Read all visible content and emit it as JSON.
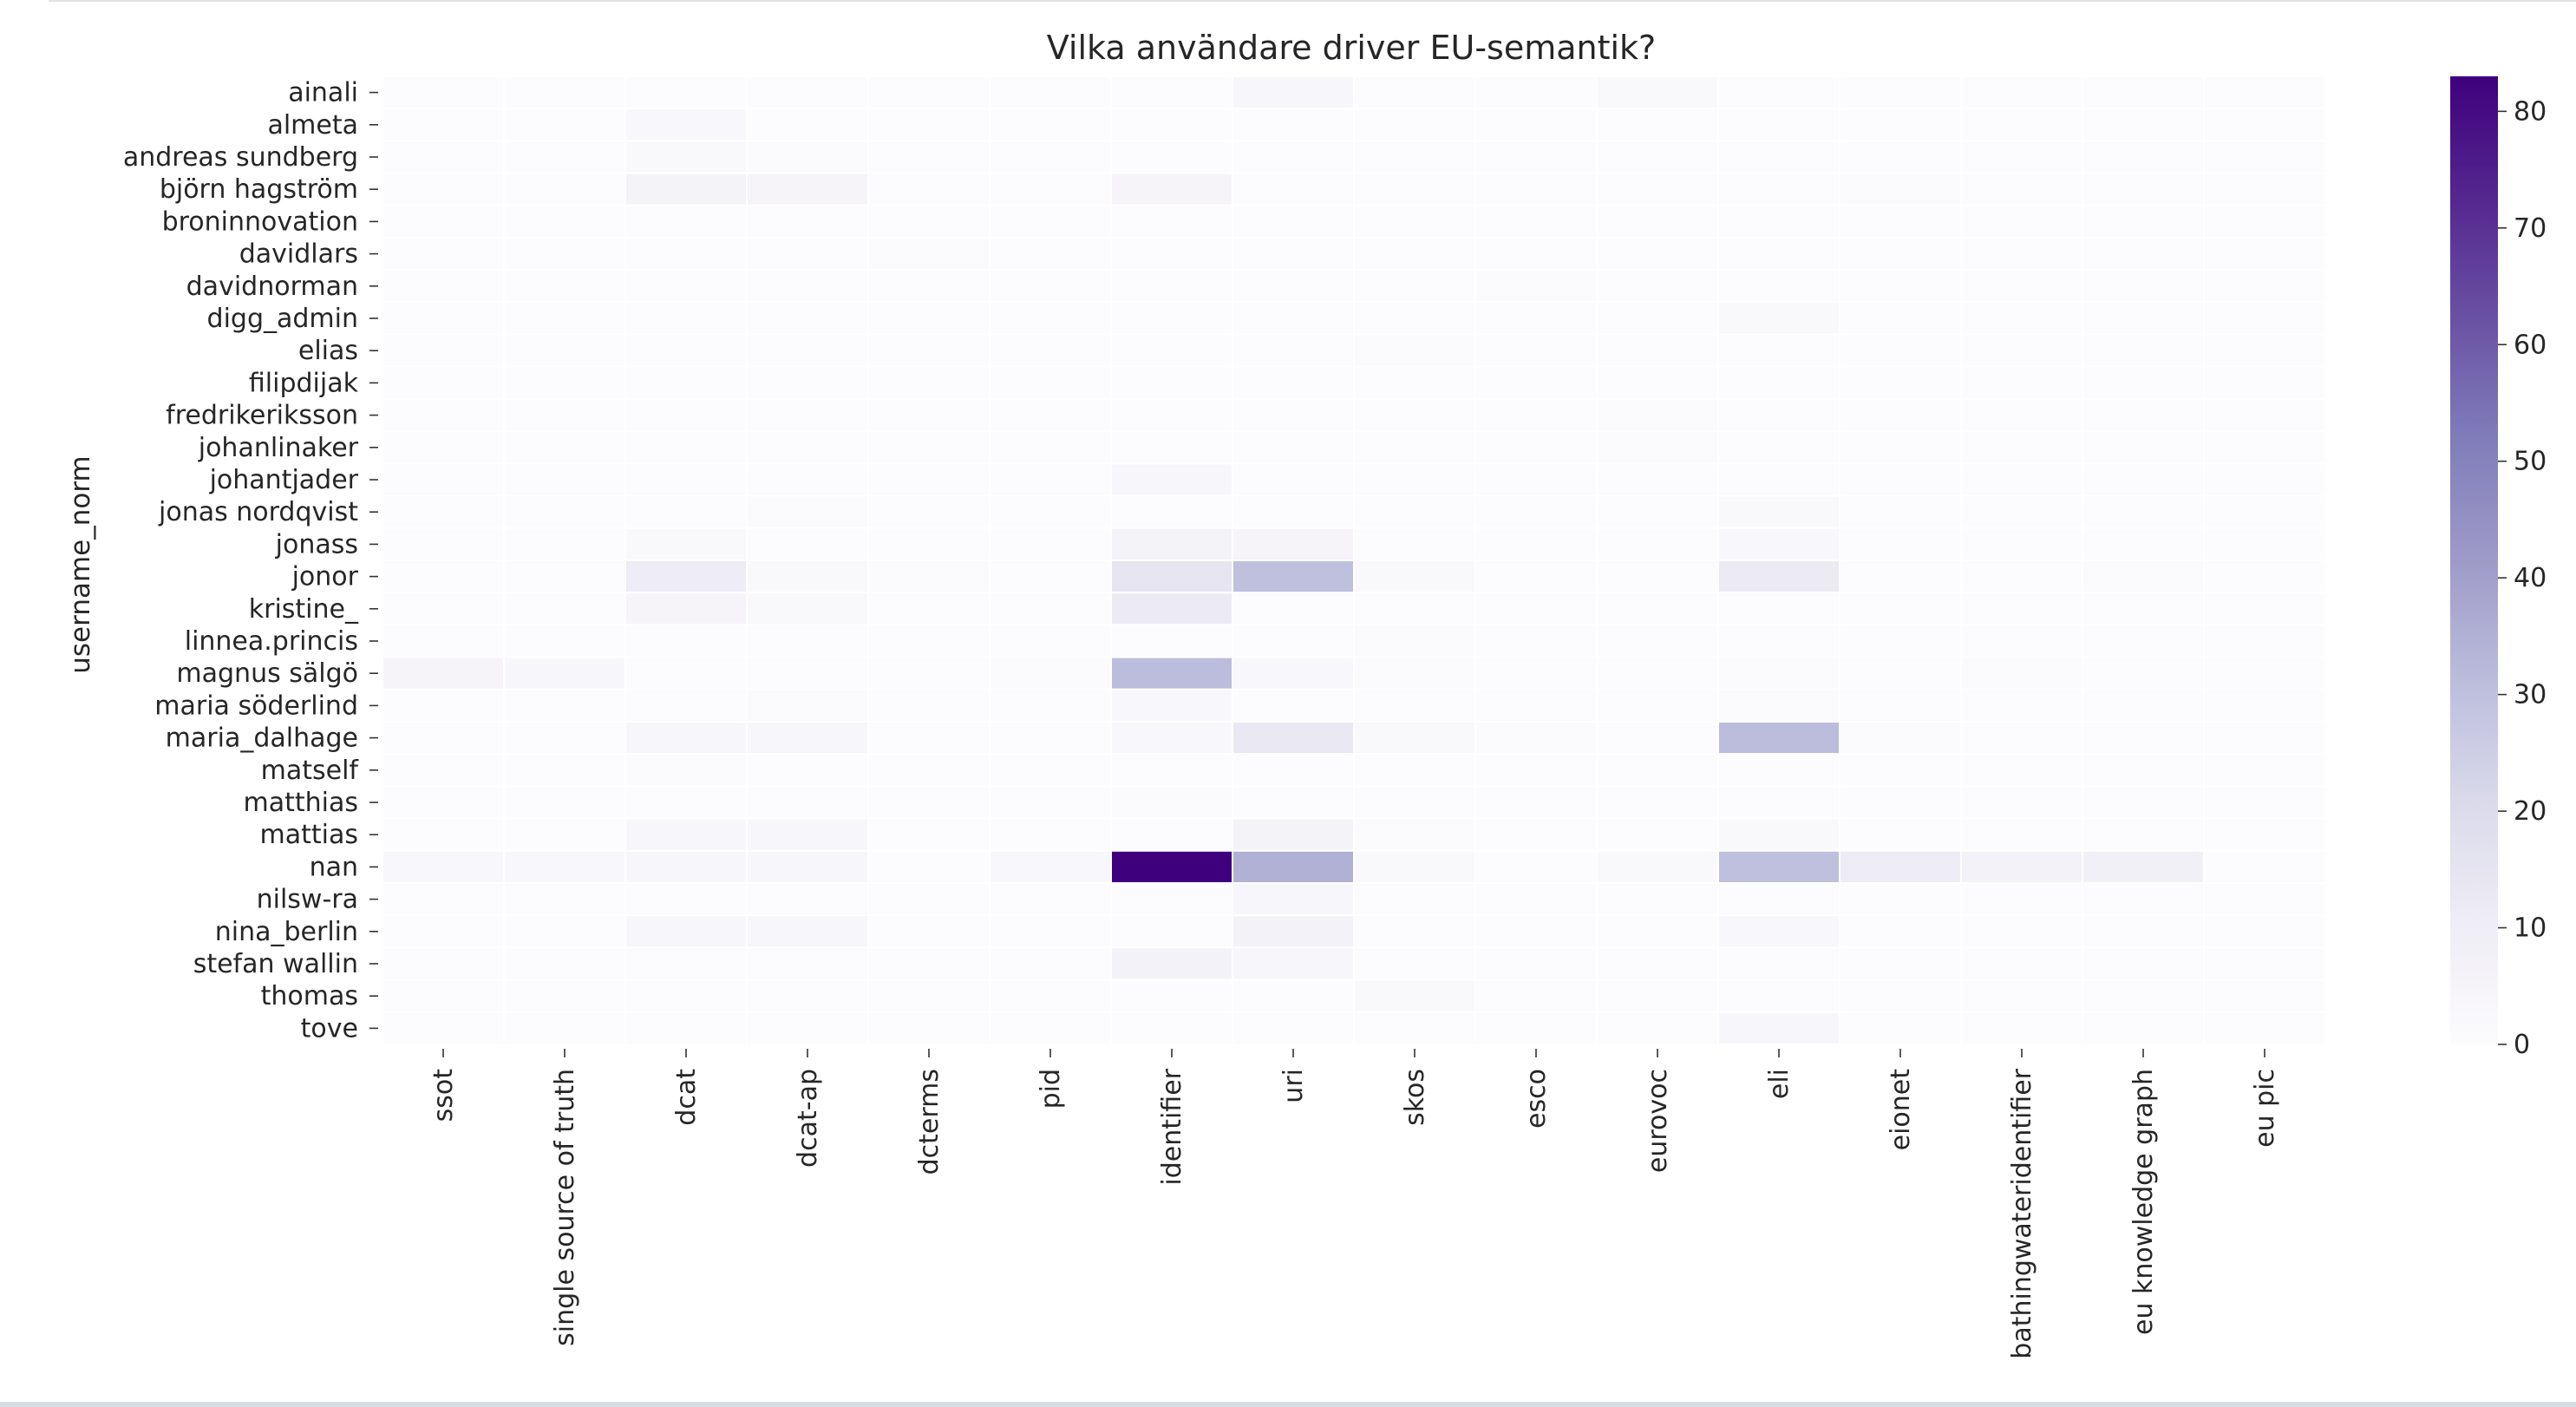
{
  "chart_data": {
    "type": "heatmap",
    "title": "Vilka användare driver EU-semantik?",
    "ylabel": "username_norm",
    "xlabel": "",
    "colormap": "Purples",
    "color_low": "#fcfbfd",
    "color_high": "#3f007d",
    "vmin": 0,
    "vmax": 83,
    "colorbar_ticks": [
      "0",
      "10",
      "20",
      "30",
      "40",
      "50",
      "60",
      "70",
      "80"
    ],
    "columns": [
      "ssot",
      "single source of truth",
      "dcat",
      "dcat-ap",
      "dcterms",
      "pid",
      "identifier",
      "uri",
      "skos",
      "esco",
      "eurovoc",
      "eli",
      "eionet",
      "bathingwateridentifier",
      "eu knowledge graph",
      "eu pic"
    ],
    "rows": [
      "ainali",
      "almeta",
      "andreas sundberg",
      "björn hagström",
      "broninnovation",
      "davidlars",
      "davidnorman",
      "digg_admin",
      "elias",
      "filipdijak",
      "fredrikeriksson",
      "johanlinaker",
      "johantjader",
      "jonas nordqvist",
      "jonass",
      "jonor",
      "kristine_",
      "linnea.princis",
      "magnus sälgö",
      "maria söderlind",
      "maria_dalhage",
      "matself",
      "matthias",
      "mattias",
      "nan",
      "nilsw-ra",
      "nina_berlin",
      "stefan wallin",
      "thomas",
      "tove"
    ],
    "values": [
      [
        0,
        0,
        0,
        0,
        0,
        0,
        0,
        4,
        0,
        0,
        2,
        0,
        0,
        0,
        0,
        0
      ],
      [
        0,
        0,
        3,
        0,
        0,
        0,
        0,
        0,
        0,
        0,
        0,
        0,
        0,
        0,
        0,
        0
      ],
      [
        0,
        0,
        2,
        1,
        0,
        0,
        0,
        0,
        0,
        0,
        0,
        0,
        0,
        0,
        0,
        0
      ],
      [
        0,
        0,
        6,
        5,
        0,
        0,
        5,
        0,
        0,
        0,
        0,
        0,
        1,
        0,
        0,
        0
      ],
      [
        0,
        0,
        0,
        0,
        0,
        0,
        0,
        0,
        0,
        0,
        0,
        0,
        0,
        0,
        0,
        0
      ],
      [
        0,
        0,
        0,
        0,
        1,
        0,
        0,
        0,
        0,
        0,
        0,
        0,
        0,
        0,
        0,
        0
      ],
      [
        0,
        0,
        0,
        0,
        0,
        0,
        0,
        0,
        0,
        1,
        0,
        0,
        0,
        0,
        0,
        0
      ],
      [
        0,
        0,
        0,
        0,
        0,
        0,
        0,
        0,
        0,
        0,
        0,
        2,
        0,
        0,
        0,
        0
      ],
      [
        0,
        0,
        0,
        0,
        0,
        0,
        0,
        0,
        1,
        0,
        0,
        0,
        0,
        0,
        0,
        0
      ],
      [
        0,
        0,
        0,
        0,
        0,
        0,
        0,
        0,
        0,
        0,
        0,
        0,
        0,
        0,
        0,
        0
      ],
      [
        0,
        0,
        0,
        0,
        0,
        0,
        0,
        0,
        0,
        0,
        1,
        0,
        0,
        0,
        0,
        0
      ],
      [
        0,
        0,
        0,
        0,
        0,
        0,
        0,
        0,
        0,
        0,
        1,
        0,
        0,
        0,
        0,
        0
      ],
      [
        0,
        0,
        0,
        0,
        0,
        0,
        4,
        0,
        0,
        0,
        0,
        0,
        0,
        0,
        0,
        0
      ],
      [
        0,
        0,
        0,
        1,
        0,
        0,
        0,
        0,
        0,
        0,
        0,
        2,
        0,
        0,
        0,
        0
      ],
      [
        0,
        0,
        2,
        0,
        0,
        0,
        6,
        5,
        0,
        0,
        0,
        3,
        0,
        0,
        0,
        0
      ],
      [
        0,
        0,
        11,
        2,
        1,
        0,
        15,
        30,
        2,
        0,
        0,
        12,
        0,
        0,
        1,
        0
      ],
      [
        0,
        0,
        5,
        2,
        0,
        0,
        12,
        0,
        0,
        0,
        0,
        0,
        0,
        0,
        0,
        0
      ],
      [
        0,
        0,
        0,
        0,
        0,
        0,
        0,
        0,
        1,
        0,
        0,
        0,
        0,
        0,
        0,
        0
      ],
      [
        5,
        4,
        0,
        0,
        0,
        1,
        31,
        3,
        1,
        0,
        0,
        1,
        0,
        1,
        0,
        0
      ],
      [
        0,
        0,
        0,
        1,
        0,
        0,
        3,
        0,
        0,
        0,
        0,
        1,
        0,
        0,
        0,
        0
      ],
      [
        0,
        0,
        4,
        4,
        0,
        0,
        3,
        13,
        2,
        1,
        0,
        31,
        1,
        0,
        0,
        0
      ],
      [
        0,
        0,
        1,
        0,
        0,
        0,
        0,
        0,
        0,
        0,
        0,
        0,
        0,
        0,
        0,
        0
      ],
      [
        0,
        0,
        0,
        0,
        0,
        0,
        1,
        0,
        0,
        0,
        0,
        0,
        0,
        0,
        0,
        0
      ],
      [
        0,
        0,
        4,
        4,
        0,
        0,
        0,
        6,
        1,
        0,
        0,
        2,
        0,
        0,
        0,
        0
      ],
      [
        3,
        3,
        4,
        4,
        0,
        3,
        83,
        35,
        2,
        0,
        2,
        30,
        11,
        7,
        8,
        0
      ],
      [
        0,
        0,
        0,
        0,
        0,
        0,
        0,
        4,
        0,
        0,
        0,
        0,
        0,
        0,
        0,
        0
      ],
      [
        0,
        0,
        4,
        4,
        0,
        0,
        0,
        7,
        0,
        0,
        0,
        3,
        0,
        0,
        0,
        0
      ],
      [
        0,
        0,
        0,
        0,
        0,
        0,
        7,
        4,
        0,
        0,
        0,
        0,
        0,
        0,
        0,
        0
      ],
      [
        0,
        0,
        0,
        0,
        0,
        0,
        0,
        0,
        2,
        0,
        0,
        0,
        0,
        0,
        0,
        0
      ],
      [
        0,
        0,
        0,
        0,
        0,
        0,
        0,
        0,
        0,
        0,
        0,
        4,
        0,
        0,
        0,
        0
      ]
    ]
  }
}
